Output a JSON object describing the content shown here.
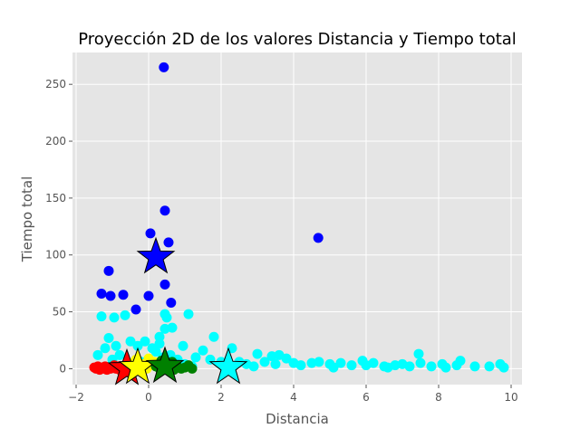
{
  "chart_data": {
    "type": "scatter",
    "title": "Proyección 2D de los valores Distancia y Tiempo total",
    "xlabel": "Distancia",
    "ylabel": "Tiempo total",
    "xlim": [
      -2.1,
      10.3
    ],
    "ylim": [
      -14,
      278
    ],
    "xticks": [
      -2,
      0,
      2,
      4,
      6,
      8,
      10
    ],
    "yticks": [
      0,
      50,
      100,
      150,
      200,
      250
    ],
    "grid": true,
    "legend": "none",
    "colors": {
      "background": "#e5e5e5",
      "grid": "#ffffff",
      "text": "#555555",
      "title": "#000000"
    },
    "series": [
      {
        "color": "#0000ff",
        "points": [
          [
            0.42,
            265
          ],
          [
            4.68,
            115
          ],
          [
            0.45,
            139
          ],
          [
            0.05,
            119
          ],
          [
            0.55,
            111
          ],
          [
            -1.1,
            86
          ],
          [
            -1.3,
            66
          ],
          [
            -1.05,
            64
          ],
          [
            -0.7,
            65
          ],
          [
            0.0,
            64
          ],
          [
            -0.35,
            52
          ],
          [
            0.45,
            74
          ],
          [
            0.62,
            58
          ]
        ]
      },
      {
        "color": "#00ffff",
        "points": [
          [
            -1.3,
            46
          ],
          [
            -0.95,
            45
          ],
          [
            -0.65,
            47
          ],
          [
            -1.1,
            27
          ],
          [
            -0.9,
            20
          ],
          [
            -1.2,
            18
          ],
          [
            -1.4,
            12
          ],
          [
            -0.8,
            12
          ],
          [
            -0.5,
            24
          ],
          [
            -0.3,
            20
          ],
          [
            -0.1,
            24
          ],
          [
            0.1,
            18
          ],
          [
            0.3,
            22
          ],
          [
            0.45,
            35
          ],
          [
            0.5,
            45
          ],
          [
            0.45,
            48
          ],
          [
            0.65,
            36
          ],
          [
            0.3,
            28
          ],
          [
            0.2,
            15
          ],
          [
            0.4,
            10
          ],
          [
            0.6,
            12
          ],
          [
            0.8,
            8
          ],
          [
            0.95,
            20
          ],
          [
            1.1,
            48
          ],
          [
            1.3,
            10
          ],
          [
            1.5,
            16
          ],
          [
            1.8,
            28
          ],
          [
            1.7,
            8
          ],
          [
            2.0,
            6
          ],
          [
            2.2,
            4
          ],
          [
            2.3,
            18
          ],
          [
            2.5,
            6
          ],
          [
            2.7,
            4
          ],
          [
            3.0,
            13
          ],
          [
            3.2,
            6
          ],
          [
            3.4,
            11
          ],
          [
            3.5,
            4
          ],
          [
            3.6,
            12
          ],
          [
            3.8,
            9
          ],
          [
            4.0,
            5
          ],
          [
            4.2,
            3
          ],
          [
            4.5,
            5
          ],
          [
            4.7,
            6
          ],
          [
            5.0,
            4
          ],
          [
            5.3,
            5
          ],
          [
            5.6,
            3
          ],
          [
            5.9,
            7
          ],
          [
            6.0,
            3
          ],
          [
            6.2,
            5
          ],
          [
            6.5,
            2
          ],
          [
            6.8,
            3
          ],
          [
            7.0,
            4
          ],
          [
            7.2,
            2
          ],
          [
            7.45,
            13
          ],
          [
            7.5,
            5
          ],
          [
            7.8,
            2
          ],
          [
            8.1,
            4
          ],
          [
            8.2,
            1
          ],
          [
            8.5,
            3
          ],
          [
            8.6,
            7
          ],
          [
            9.0,
            2
          ],
          [
            9.4,
            2
          ],
          [
            9.7,
            4
          ],
          [
            9.8,
            1
          ],
          [
            1.0,
            4
          ],
          [
            1.2,
            2
          ],
          [
            -1.0,
            8
          ],
          [
            -0.2,
            6
          ],
          [
            0.7,
            3
          ],
          [
            2.9,
            2
          ],
          [
            5.1,
            1
          ],
          [
            6.6,
            1
          ]
        ]
      },
      {
        "color": "#ff0000",
        "points": [
          [
            -1.5,
            1
          ],
          [
            -1.45,
            0
          ],
          [
            -1.4,
            2
          ],
          [
            -1.35,
            -1
          ],
          [
            -1.3,
            1
          ],
          [
            -1.25,
            0
          ],
          [
            -1.2,
            2
          ],
          [
            -1.15,
            -1
          ],
          [
            -1.1,
            1
          ],
          [
            -1.05,
            0
          ],
          [
            -1.0,
            1
          ],
          [
            -0.95,
            3
          ],
          [
            -0.9,
            0
          ],
          [
            -0.85,
            2
          ],
          [
            -0.8,
            -1
          ],
          [
            -0.75,
            1
          ]
        ]
      },
      {
        "color": "#ffff00",
        "points": [
          [
            -0.55,
            5
          ],
          [
            -0.45,
            2
          ],
          [
            -0.35,
            8
          ],
          [
            -0.25,
            1
          ],
          [
            -0.15,
            4
          ],
          [
            -0.05,
            0
          ],
          [
            0.05,
            3
          ],
          [
            0.15,
            6
          ],
          [
            -0.4,
            -1
          ],
          [
            0.0,
            9
          ]
        ]
      },
      {
        "color": "#008000",
        "points": [
          [
            0.2,
            2
          ],
          [
            0.3,
            0
          ],
          [
            0.4,
            5
          ],
          [
            0.5,
            1
          ],
          [
            0.6,
            3
          ],
          [
            0.7,
            -1
          ],
          [
            0.8,
            2
          ],
          [
            0.9,
            0
          ],
          [
            1.0,
            1
          ],
          [
            1.1,
            3
          ],
          [
            1.2,
            0
          ],
          [
            0.35,
            7
          ],
          [
            0.65,
            6
          ],
          [
            0.55,
            -1
          ]
        ]
      }
    ],
    "centroids": [
      {
        "color": "#0000ff",
        "x": 0.2,
        "y": 98
      },
      {
        "color": "#ff0000",
        "x": -0.6,
        "y": 0
      },
      {
        "color": "#ffff00",
        "x": -0.3,
        "y": 1
      },
      {
        "color": "#008000",
        "x": 0.45,
        "y": 2
      },
      {
        "color": "#00ffff",
        "x": 2.2,
        "y": 1
      }
    ]
  }
}
